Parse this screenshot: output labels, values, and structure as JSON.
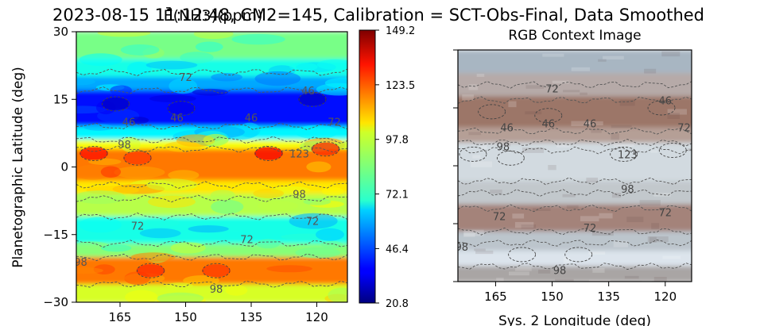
{
  "title": "2023-08-15 11:12:48, CM2=145, Calibration = SCT-Obs-Final, Data Smoothed",
  "title_overlay": "Ē(NH3)(ppm)",
  "chart_data": [
    {
      "type": "heatmap",
      "ylabel": "Planetographic Latitude (deg)",
      "xlabel": "",
      "xlim": [
        175,
        113
      ],
      "ylim": [
        -30,
        30
      ],
      "x_ticks": [
        "165",
        "150",
        "135",
        "120"
      ],
      "y_ticks": [
        "30",
        "15",
        "0",
        "−15",
        "−30"
      ],
      "colormap": "jet",
      "color_range": [
        20.8,
        149.2
      ],
      "colorbar_ticks": [
        "149.2",
        "123.5",
        "97.8",
        "72.1",
        "46.4",
        "20.8"
      ],
      "contour_levels": [
        46,
        72,
        98,
        123
      ],
      "contour_labels": [
        {
          "text": "72",
          "x": 150,
          "y": 20
        },
        {
          "text": "46",
          "x": 122,
          "y": 17
        },
        {
          "text": "46",
          "x": 163,
          "y": 10
        },
        {
          "text": "46",
          "x": 152,
          "y": 11
        },
        {
          "text": "46",
          "x": 135,
          "y": 11
        },
        {
          "text": "72",
          "x": 116,
          "y": 10
        },
        {
          "text": "98",
          "x": 164,
          "y": 5
        },
        {
          "text": "123",
          "x": 124,
          "y": 3
        },
        {
          "text": "98",
          "x": 124,
          "y": -6
        },
        {
          "text": "72",
          "x": 121,
          "y": -12
        },
        {
          "text": "72",
          "x": 161,
          "y": -13
        },
        {
          "text": "72",
          "x": 136,
          "y": -16
        },
        {
          "text": "98",
          "x": 174,
          "y": -21
        },
        {
          "text": "98",
          "x": 143,
          "y": -27
        }
      ],
      "bands": [
        {
          "lat": [
            30,
            24
          ],
          "value": 84
        },
        {
          "lat": [
            24,
            20
          ],
          "value": 72
        },
        {
          "lat": [
            20,
            17
          ],
          "value": 58
        },
        {
          "lat": [
            17,
            9
          ],
          "value": 38
        },
        {
          "lat": [
            9,
            6
          ],
          "value": 68
        },
        {
          "lat": [
            6,
            4
          ],
          "value": 100
        },
        {
          "lat": [
            4,
            -3
          ],
          "value": 118
        },
        {
          "lat": [
            -3,
            -6
          ],
          "value": 104
        },
        {
          "lat": [
            -6,
            -11
          ],
          "value": 92
        },
        {
          "lat": [
            -11,
            -17
          ],
          "value": 72
        },
        {
          "lat": [
            -17,
            -20
          ],
          "value": 86
        },
        {
          "lat": [
            -20,
            -26
          ],
          "value": 118
        },
        {
          "lat": [
            -26,
            -30
          ],
          "value": 96
        }
      ]
    },
    {
      "type": "image",
      "title": "RGB Context Image",
      "xlabel": "Sys. 2 Longitude (deg)",
      "xlim": [
        175,
        113
      ],
      "ylim": [
        -30,
        30
      ],
      "x_ticks": [
        "165",
        "150",
        "135",
        "120"
      ],
      "contour_labels": [
        {
          "text": "72",
          "x": 150,
          "y": 20
        },
        {
          "text": "46",
          "x": 120,
          "y": 17
        },
        {
          "text": "46",
          "x": 162,
          "y": 10
        },
        {
          "text": "46",
          "x": 151,
          "y": 11
        },
        {
          "text": "46",
          "x": 140,
          "y": 11
        },
        {
          "text": "72",
          "x": 115,
          "y": 10
        },
        {
          "text": "98",
          "x": 163,
          "y": 5
        },
        {
          "text": "123",
          "x": 130,
          "y": 3
        },
        {
          "text": "98",
          "x": 130,
          "y": -6
        },
        {
          "text": "72",
          "x": 120,
          "y": -12
        },
        {
          "text": "72",
          "x": 164,
          "y": -13
        },
        {
          "text": "72",
          "x": 140,
          "y": -16
        },
        {
          "text": "98",
          "x": 174,
          "y": -21
        },
        {
          "text": "98",
          "x": 148,
          "y": -27
        }
      ],
      "bands": [
        {
          "lat": [
            30,
            24
          ],
          "color": "#a8b6c2"
        },
        {
          "lat": [
            24,
            18
          ],
          "color": "#b6aaa8"
        },
        {
          "lat": [
            18,
            10
          ],
          "color": "#9c7668"
        },
        {
          "lat": [
            10,
            6
          ],
          "color": "#b59f96"
        },
        {
          "lat": [
            6,
            -4
          ],
          "color": "#d2dae0"
        },
        {
          "lat": [
            -4,
            -10
          ],
          "color": "#c2c8cc"
        },
        {
          "lat": [
            -10,
            -17
          ],
          "color": "#a4837a"
        },
        {
          "lat": [
            -17,
            -22
          ],
          "color": "#bcc5cc"
        },
        {
          "lat": [
            -22,
            -26
          ],
          "color": "#dce4ec"
        },
        {
          "lat": [
            -26,
            -30
          ],
          "color": "#a9a5a4"
        }
      ]
    }
  ]
}
